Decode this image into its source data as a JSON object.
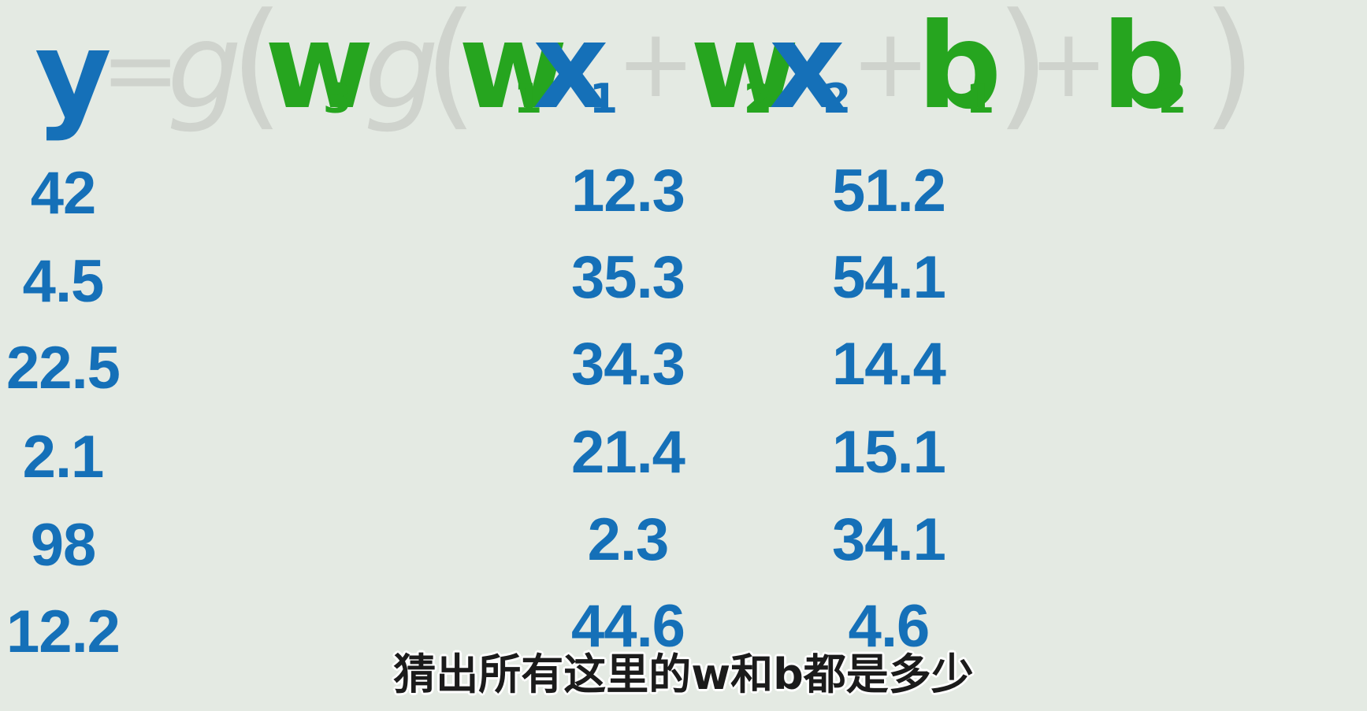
{
  "equation": {
    "y": "y",
    "equals": "=",
    "g_outer": "g",
    "open_paren_outer": "(",
    "w3": "w",
    "w3_sub": "3",
    "g_inner": "g",
    "open_paren_inner": "(",
    "w1": "w",
    "w1_sub": "1",
    "x1": "x",
    "x1_sub": "1",
    "plus1": "+",
    "w2": "w",
    "w2_sub": "2",
    "x2": "x",
    "x2_sub": "2",
    "plus2": "+",
    "b1": "b",
    "b1_sub": "1",
    "close_paren_inner": ")",
    "plus3": "+",
    "b2": "b",
    "b2_sub": "2",
    "close_paren_outer": ")"
  },
  "columns": {
    "y": [
      "42",
      "4.5",
      "22.5",
      "2.1",
      "98",
      "12.2"
    ],
    "x1": [
      "12.3",
      "35.3",
      "34.3",
      "21.4",
      "2.3",
      "44.6"
    ],
    "x2": [
      "51.2",
      "54.1",
      "14.4",
      "15.1",
      "34.1",
      "4.6"
    ]
  },
  "subtitle": "猜出所有这里的w和b都是多少",
  "colors": {
    "background": "#e4eae3",
    "variable_blue": "#1570b8",
    "parameter_green": "#26a51f",
    "operator_gray": "#cfd3cd"
  }
}
